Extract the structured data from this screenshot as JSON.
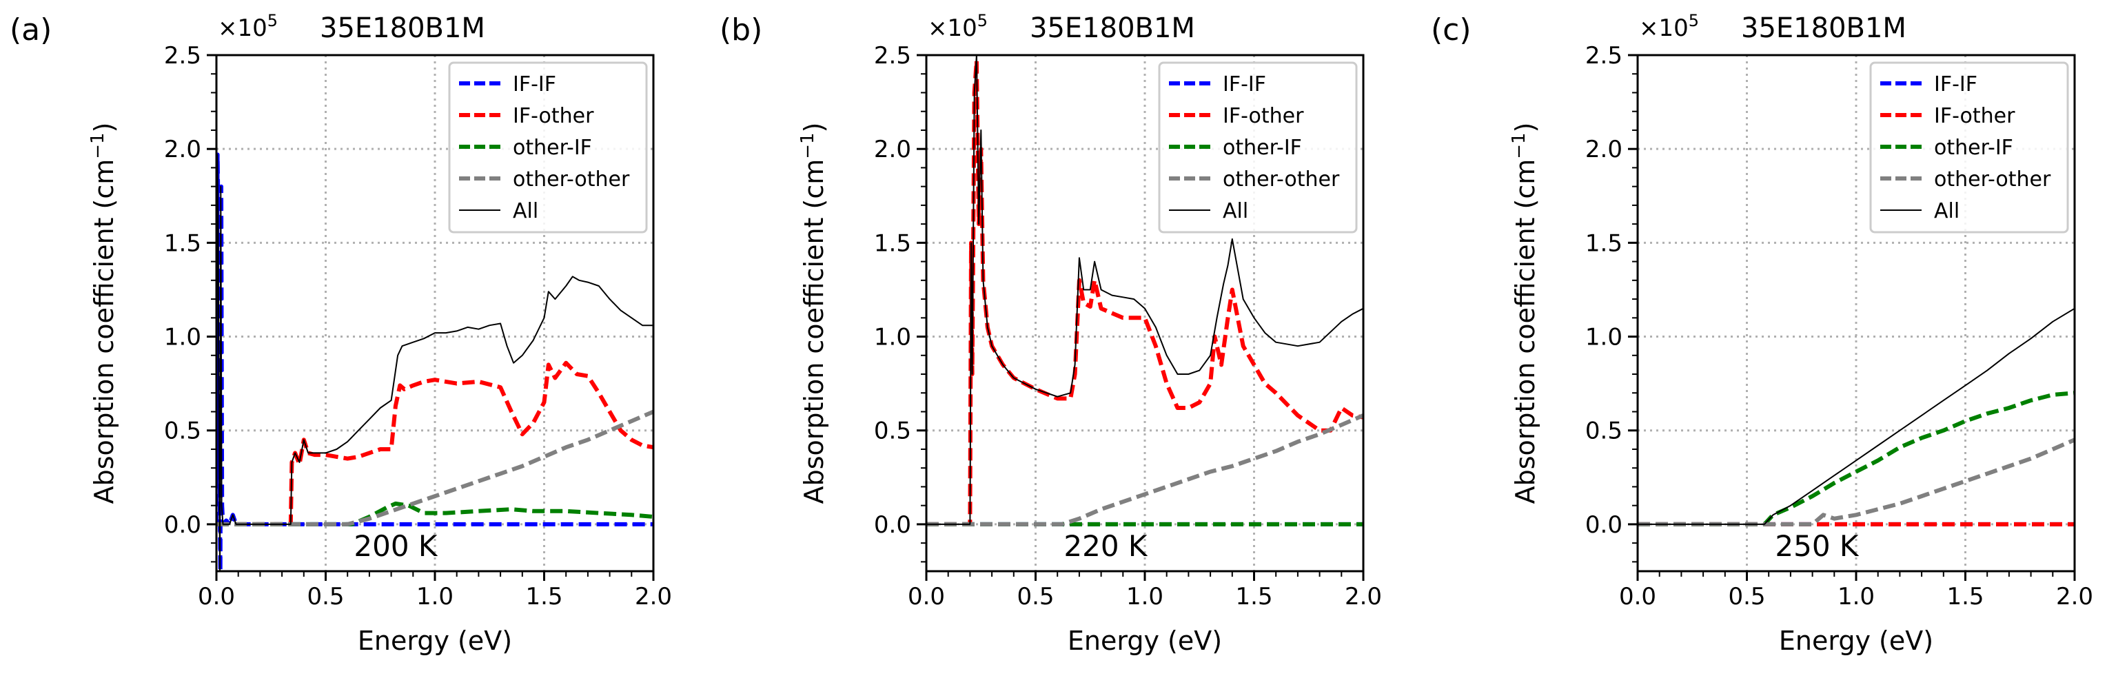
{
  "chart_data": [
    {
      "panel_label": "(a)",
      "type": "line",
      "title": "35E180B1M",
      "offset_text": "×10^5",
      "temperature_label": "200 K",
      "xlabel": "Energy (eV)",
      "ylabel": "Absorption coefficient (cm^−1)",
      "xlim": [
        0,
        2.0
      ],
      "ylim": [
        -0.25,
        2.5
      ],
      "xticks": [
        "0.0",
        "0.5",
        "1.0",
        "1.5",
        "2.0"
      ],
      "yticks": [
        "0.0",
        "0.5",
        "1.0",
        "1.5",
        "2.0",
        "2.5"
      ],
      "grid": true,
      "legend_position": "upper right",
      "series": [
        {
          "name": "IF-IF",
          "color": "#0000ff",
          "style": "dashed",
          "x": [
            0,
            0.005,
            0.01,
            0.014,
            0.018,
            0.022,
            0.026,
            0.03,
            0.045,
            0.06,
            0.075,
            0.09,
            0.1,
            2.0
          ],
          "y": [
            0,
            1.97,
            1.5,
            0.3,
            -0.25,
            1.8,
            0.1,
            0,
            0.02,
            0,
            0.05,
            0,
            0,
            0
          ]
        },
        {
          "name": "IF-other",
          "color": "#ff0000",
          "style": "dashed",
          "x": [
            0,
            0.34,
            0.345,
            0.36,
            0.38,
            0.4,
            0.42,
            0.45,
            0.5,
            0.55,
            0.6,
            0.65,
            0.7,
            0.75,
            0.8,
            0.82,
            0.84,
            0.86,
            0.9,
            0.95,
            1.0,
            1.05,
            1.1,
            1.2,
            1.3,
            1.35,
            1.4,
            1.45,
            1.5,
            1.52,
            1.55,
            1.6,
            1.65,
            1.7,
            1.75,
            1.8,
            1.85,
            1.9,
            1.95,
            2.0
          ],
          "y": [
            0,
            0,
            0.33,
            0.38,
            0.32,
            0.45,
            0.38,
            0.37,
            0.37,
            0.36,
            0.35,
            0.36,
            0.38,
            0.4,
            0.4,
            0.63,
            0.74,
            0.72,
            0.74,
            0.76,
            0.77,
            0.76,
            0.75,
            0.76,
            0.73,
            0.6,
            0.48,
            0.54,
            0.65,
            0.85,
            0.78,
            0.86,
            0.8,
            0.79,
            0.7,
            0.6,
            0.5,
            0.45,
            0.42,
            0.41
          ]
        },
        {
          "name": "other-IF",
          "color": "#008000",
          "style": "dashed",
          "x": [
            0,
            0.62,
            0.7,
            0.78,
            0.82,
            0.88,
            0.95,
            1.05,
            1.2,
            1.35,
            1.45,
            1.6,
            1.75,
            1.9,
            2.0
          ],
          "y": [
            0,
            0,
            0.04,
            0.09,
            0.11,
            0.1,
            0.06,
            0.06,
            0.07,
            0.08,
            0.07,
            0.07,
            0.06,
            0.05,
            0.04
          ]
        },
        {
          "name": "other-other",
          "color": "#808080",
          "style": "dashed",
          "x": [
            0,
            0.6,
            0.7,
            0.8,
            0.9,
            1.0,
            1.1,
            1.2,
            1.3,
            1.4,
            1.5,
            1.6,
            1.7,
            1.8,
            1.9,
            2.0
          ],
          "y": [
            0,
            0,
            0.03,
            0.07,
            0.11,
            0.15,
            0.19,
            0.23,
            0.27,
            0.31,
            0.36,
            0.41,
            0.45,
            0.5,
            0.55,
            0.6
          ]
        },
        {
          "name": "All",
          "color": "#000000",
          "style": "solid",
          "x": [
            0,
            0.004,
            0.008,
            0.012,
            0.016,
            0.02,
            0.024,
            0.03,
            0.06,
            0.075,
            0.09,
            0.34,
            0.345,
            0.36,
            0.38,
            0.4,
            0.42,
            0.45,
            0.5,
            0.55,
            0.6,
            0.65,
            0.7,
            0.75,
            0.8,
            0.83,
            0.85,
            0.9,
            0.95,
            1.0,
            1.05,
            1.1,
            1.15,
            1.2,
            1.25,
            1.3,
            1.33,
            1.36,
            1.4,
            1.45,
            1.5,
            1.52,
            1.55,
            1.6,
            1.63,
            1.66,
            1.7,
            1.75,
            1.8,
            1.85,
            1.9,
            1.95,
            2.0
          ],
          "y": [
            0,
            1.97,
            1.6,
            0.4,
            -0.25,
            1.8,
            0.1,
            0,
            0,
            0.05,
            0,
            0,
            0.33,
            0.38,
            0.33,
            0.45,
            0.38,
            0.38,
            0.38,
            0.4,
            0.44,
            0.5,
            0.56,
            0.62,
            0.66,
            0.9,
            0.95,
            0.97,
            0.99,
            1.02,
            1.02,
            1.03,
            1.05,
            1.04,
            1.06,
            1.07,
            0.95,
            0.86,
            0.9,
            0.98,
            1.1,
            1.24,
            1.2,
            1.27,
            1.32,
            1.3,
            1.29,
            1.27,
            1.2,
            1.14,
            1.1,
            1.06,
            1.06
          ]
        }
      ]
    },
    {
      "panel_label": "(b)",
      "type": "line",
      "title": "35E180B1M",
      "offset_text": "×10^5",
      "temperature_label": "220 K",
      "xlabel": "Energy (eV)",
      "ylabel": "Absorption coefficient (cm^−1)",
      "xlim": [
        0,
        2.0
      ],
      "ylim": [
        -0.25,
        2.5
      ],
      "xticks": [
        "0.0",
        "0.5",
        "1.0",
        "1.5",
        "2.0"
      ],
      "yticks": [
        "0.0",
        "0.5",
        "1.0",
        "1.5",
        "2.0",
        "2.5"
      ],
      "grid": true,
      "legend_position": "upper right",
      "series": [
        {
          "name": "IF-IF",
          "color": "#0000ff",
          "style": "dashed",
          "x": [
            0,
            2.0
          ],
          "y": [
            0,
            0
          ]
        },
        {
          "name": "IF-other",
          "color": "#ff0000",
          "style": "dashed",
          "x": [
            0,
            0.2,
            0.205,
            0.21,
            0.22,
            0.23,
            0.24,
            0.25,
            0.26,
            0.28,
            0.3,
            0.35,
            0.4,
            0.5,
            0.6,
            0.66,
            0.68,
            0.7,
            0.72,
            0.75,
            0.77,
            0.8,
            0.9,
            1.0,
            1.05,
            1.1,
            1.15,
            1.2,
            1.25,
            1.3,
            1.32,
            1.35,
            1.38,
            1.4,
            1.45,
            1.5,
            1.55,
            1.6,
            1.7,
            1.8,
            1.85,
            1.9,
            1.95,
            2.0
          ],
          "y": [
            0,
            0,
            1.5,
            0.8,
            2.3,
            2.47,
            1.6,
            2.0,
            1.3,
            1.05,
            0.95,
            0.85,
            0.78,
            0.72,
            0.67,
            0.67,
            0.8,
            1.3,
            1.18,
            1.16,
            1.3,
            1.15,
            1.1,
            1.1,
            0.95,
            0.75,
            0.62,
            0.62,
            0.65,
            0.75,
            1.0,
            0.85,
            1.1,
            1.25,
            0.95,
            0.85,
            0.75,
            0.7,
            0.58,
            0.5,
            0.5,
            0.62,
            0.58,
            0.57
          ]
        },
        {
          "name": "other-IF",
          "color": "#008000",
          "style": "dashed",
          "x": [
            0,
            2.0
          ],
          "y": [
            0,
            0
          ]
        },
        {
          "name": "other-other",
          "color": "#808080",
          "style": "dashed",
          "x": [
            0,
            0.62,
            0.7,
            0.8,
            0.9,
            1.0,
            1.1,
            1.2,
            1.3,
            1.4,
            1.5,
            1.6,
            1.7,
            1.8,
            1.9,
            2.0
          ],
          "y": [
            0,
            0,
            0.03,
            0.08,
            0.12,
            0.16,
            0.2,
            0.24,
            0.28,
            0.31,
            0.35,
            0.39,
            0.44,
            0.48,
            0.53,
            0.58
          ]
        },
        {
          "name": "All",
          "color": "#000000",
          "style": "solid",
          "x": [
            0,
            0.2,
            0.205,
            0.21,
            0.22,
            0.23,
            0.24,
            0.25,
            0.26,
            0.28,
            0.3,
            0.35,
            0.4,
            0.5,
            0.6,
            0.66,
            0.68,
            0.7,
            0.72,
            0.75,
            0.77,
            0.8,
            0.85,
            0.9,
            0.95,
            1.0,
            1.05,
            1.1,
            1.15,
            1.2,
            1.25,
            1.3,
            1.33,
            1.36,
            1.38,
            1.4,
            1.45,
            1.5,
            1.55,
            1.6,
            1.7,
            1.8,
            1.9,
            1.95,
            2.0
          ],
          "y": [
            0,
            0,
            1.5,
            0.8,
            2.3,
            2.5,
            1.6,
            2.1,
            1.3,
            1.05,
            0.95,
            0.85,
            0.78,
            0.72,
            0.68,
            0.7,
            0.85,
            1.42,
            1.25,
            1.25,
            1.4,
            1.25,
            1.22,
            1.21,
            1.2,
            1.15,
            1.05,
            0.9,
            0.8,
            0.8,
            0.82,
            0.9,
            1.1,
            1.28,
            1.38,
            1.52,
            1.2,
            1.1,
            1.02,
            0.97,
            0.95,
            0.97,
            1.08,
            1.12,
            1.15
          ]
        }
      ]
    },
    {
      "panel_label": "(c)",
      "type": "line",
      "title": "35E180B1M",
      "offset_text": "×10^5",
      "temperature_label": "250 K",
      "xlabel": "Energy (eV)",
      "ylabel": "Absorption coefficient (cm^−1)",
      "xlim": [
        0,
        2.0
      ],
      "ylim": [
        -0.25,
        2.5
      ],
      "xticks": [
        "0.0",
        "0.5",
        "1.0",
        "1.5",
        "2.0"
      ],
      "yticks": [
        "0.0",
        "0.5",
        "1.0",
        "1.5",
        "2.0",
        "2.5"
      ],
      "grid": true,
      "legend_position": "upper right",
      "series": [
        {
          "name": "IF-IF",
          "color": "#0000ff",
          "style": "dashed",
          "x": [
            0,
            2.0
          ],
          "y": [
            0,
            0
          ]
        },
        {
          "name": "IF-other",
          "color": "#ff0000",
          "style": "dashed",
          "x": [
            0,
            2.0
          ],
          "y": [
            0,
            0
          ]
        },
        {
          "name": "other-IF",
          "color": "#008000",
          "style": "dashed",
          "x": [
            0,
            0.58,
            0.62,
            0.7,
            0.8,
            0.9,
            1.0,
            1.1,
            1.2,
            1.3,
            1.4,
            1.5,
            1.6,
            1.7,
            1.8,
            1.9,
            2.0
          ],
          "y": [
            0,
            0,
            0.05,
            0.09,
            0.15,
            0.22,
            0.28,
            0.34,
            0.41,
            0.46,
            0.5,
            0.55,
            0.59,
            0.62,
            0.66,
            0.69,
            0.7
          ]
        },
        {
          "name": "other-other",
          "color": "#808080",
          "style": "dashed",
          "x": [
            0,
            0.8,
            0.85,
            0.9,
            1.0,
            1.1,
            1.2,
            1.3,
            1.4,
            1.5,
            1.6,
            1.7,
            1.8,
            1.9,
            2.0
          ],
          "y": [
            0,
            0,
            0.05,
            0.03,
            0.05,
            0.08,
            0.11,
            0.15,
            0.19,
            0.23,
            0.27,
            0.31,
            0.35,
            0.4,
            0.45
          ]
        },
        {
          "name": "All",
          "color": "#000000",
          "style": "solid",
          "x": [
            0,
            0.58,
            0.62,
            0.7,
            0.8,
            0.9,
            1.0,
            1.1,
            1.2,
            1.3,
            1.4,
            1.5,
            1.6,
            1.7,
            1.8,
            1.9,
            2.0
          ],
          "y": [
            0,
            0,
            0.05,
            0.1,
            0.18,
            0.26,
            0.34,
            0.42,
            0.5,
            0.58,
            0.66,
            0.74,
            0.82,
            0.91,
            0.99,
            1.08,
            1.15
          ]
        }
      ]
    }
  ]
}
